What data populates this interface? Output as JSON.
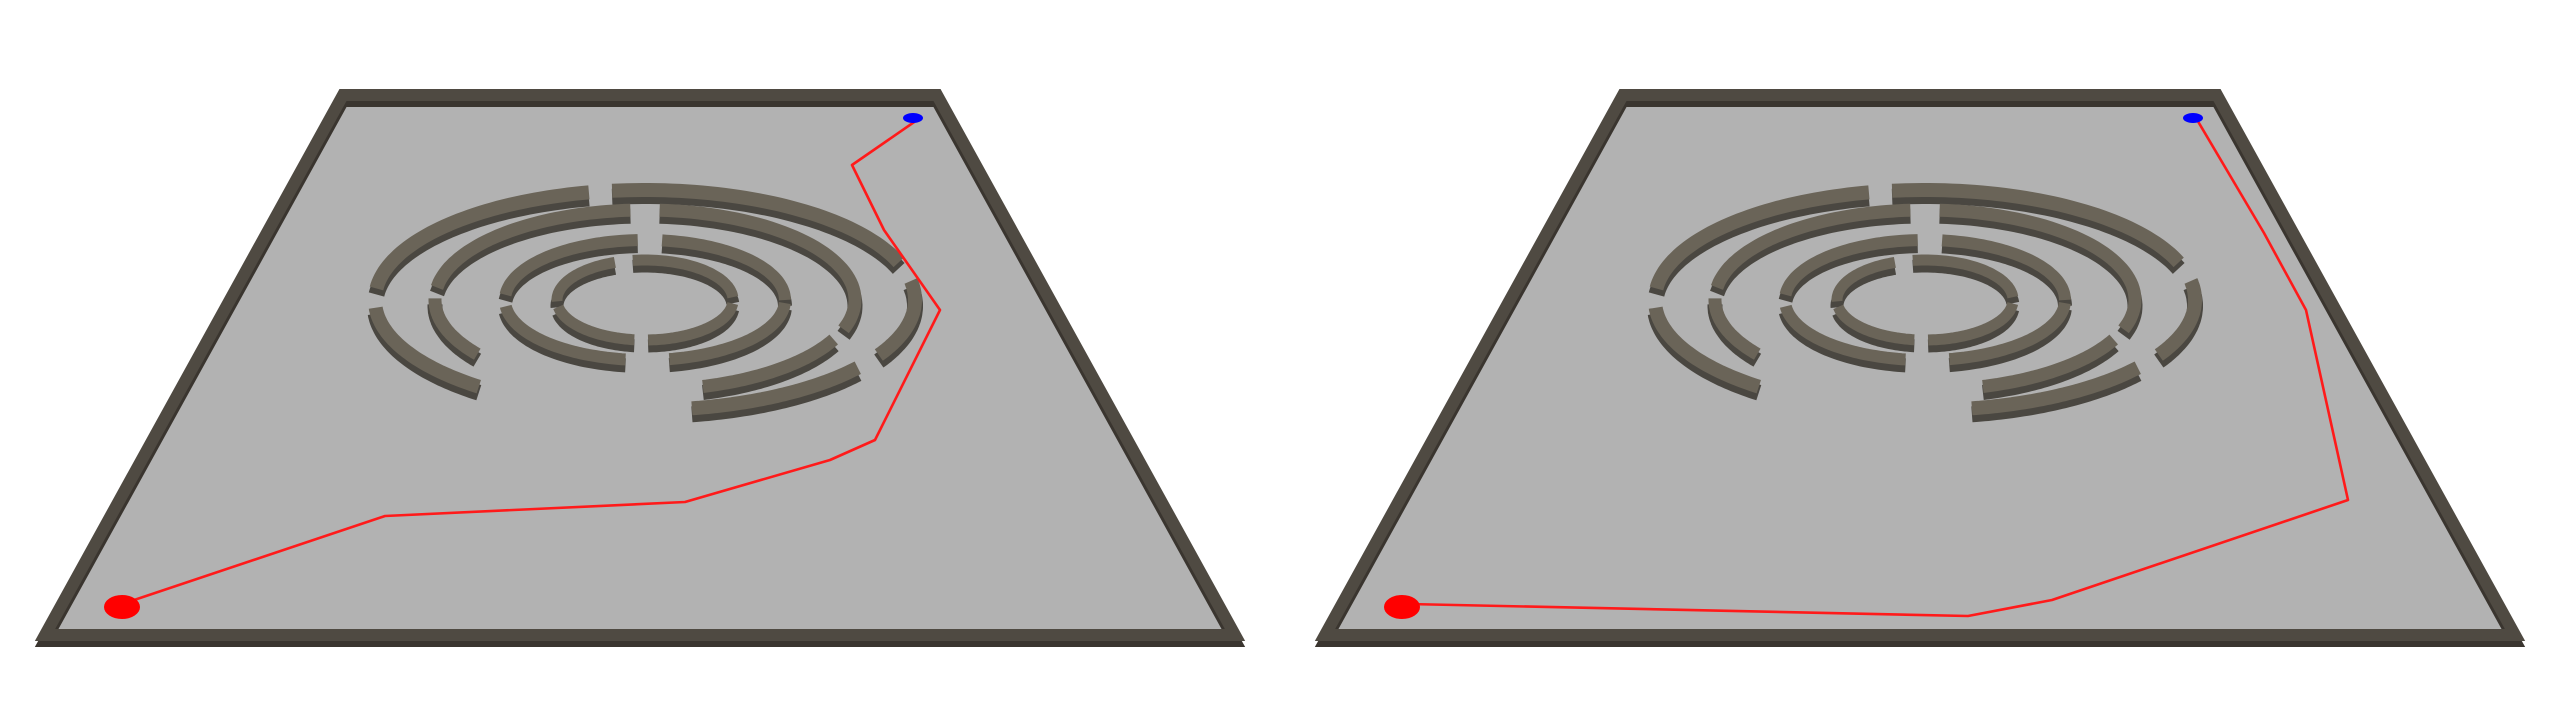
{
  "scenes": [
    {
      "name": "maze-scene-left"
    },
    {
      "name": "maze-scene-right"
    }
  ],
  "colors": {
    "background": "#ffffff",
    "floor": "#b2b2b2",
    "wall": "#4f4a42",
    "path": "#ff1a1a",
    "start_marker": "#ff0000",
    "goal_marker": "#0000ff"
  }
}
